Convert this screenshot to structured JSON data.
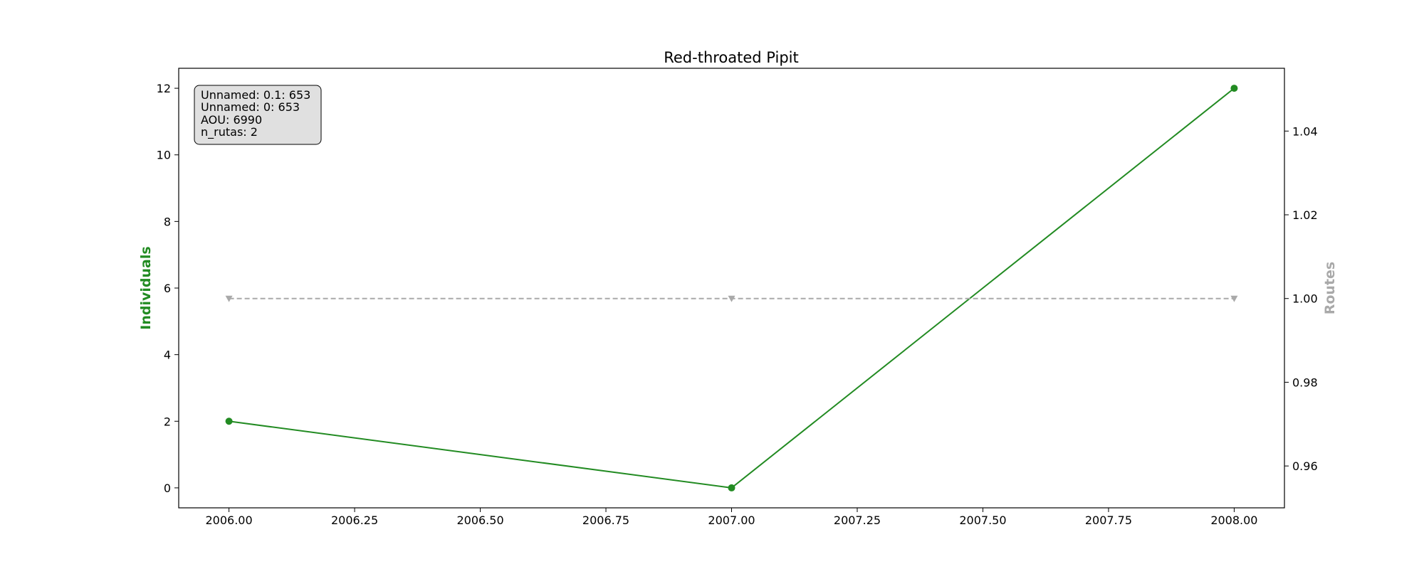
{
  "chart_data": {
    "type": "line",
    "title": "Red-throated Pipit",
    "x": [
      2006,
      2007,
      2008
    ],
    "xlim": [
      2005.9,
      2008.1
    ],
    "xticks": [
      2006.0,
      2006.25,
      2006.5,
      2006.75,
      2007.0,
      2007.25,
      2007.5,
      2007.75,
      2008.0
    ],
    "xtick_labels": [
      "2006.00",
      "2006.25",
      "2006.50",
      "2006.75",
      "2007.00",
      "2007.25",
      "2007.50",
      "2007.75",
      "2008.00"
    ],
    "left_axis": {
      "label": "Individuals",
      "color": "#228b22",
      "ylim": [
        -0.6,
        12.6
      ],
      "ticks": [
        0,
        2,
        4,
        6,
        8,
        10,
        12
      ],
      "tick_labels": [
        "0",
        "2",
        "4",
        "6",
        "8",
        "10",
        "12"
      ]
    },
    "right_axis": {
      "label": "Routes",
      "color": "#a9a9a9",
      "ylim": [
        0.95,
        1.055
      ],
      "ticks": [
        0.96,
        0.98,
        1.0,
        1.02,
        1.04
      ],
      "tick_labels": [
        "0.96",
        "0.98",
        "1.00",
        "1.02",
        "1.04"
      ]
    },
    "series": [
      {
        "name": "Individuals",
        "axis": "left",
        "values": [
          2,
          0,
          12
        ],
        "color": "#228b22",
        "style": "solid",
        "marker": "circle"
      },
      {
        "name": "Routes",
        "axis": "right",
        "values": [
          1,
          1,
          1
        ],
        "color": "#a9a9a9",
        "style": "dashed",
        "marker": "triangle-down"
      }
    ],
    "info_box": {
      "lines": [
        "Unnamed: 0.1: 653",
        "Unnamed: 0: 653",
        "AOU: 6990",
        "n_rutas: 2"
      ],
      "placement": "top-left"
    }
  }
}
